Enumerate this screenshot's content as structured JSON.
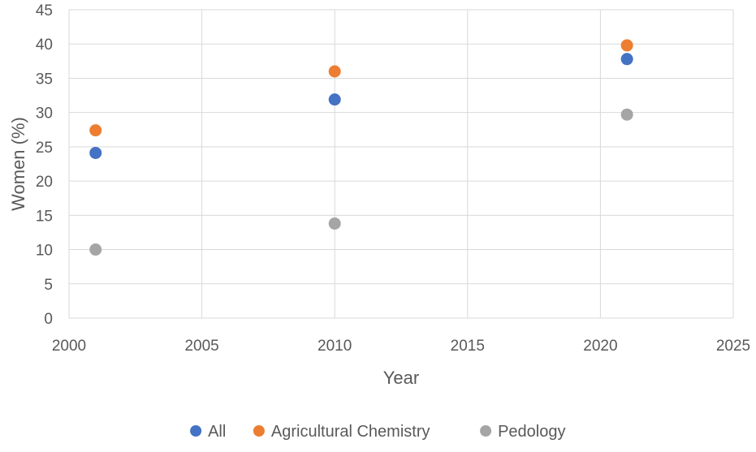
{
  "chart_data": {
    "type": "scatter",
    "title": "",
    "xlabel": "Year",
    "ylabel": "Women (%)",
    "xlim": [
      2000,
      2025
    ],
    "ylim": [
      0,
      45
    ],
    "xticks": [
      2000,
      2005,
      2010,
      2015,
      2020,
      2025
    ],
    "yticks": [
      0,
      5,
      10,
      15,
      20,
      25,
      30,
      35,
      40,
      45
    ],
    "grid": true,
    "legend_position": "bottom",
    "series": [
      {
        "name": "All",
        "color": "#4472C4",
        "points": [
          {
            "x": 2001,
            "y": 24.1
          },
          {
            "x": 2010,
            "y": 31.9
          },
          {
            "x": 2021,
            "y": 37.8
          }
        ]
      },
      {
        "name": "Agricultural Chemistry",
        "color": "#ED7D31",
        "points": [
          {
            "x": 2001,
            "y": 27.4
          },
          {
            "x": 2010,
            "y": 36.0
          },
          {
            "x": 2021,
            "y": 39.8
          }
        ]
      },
      {
        "name": "Pedology",
        "color": "#A5A5A5",
        "points": [
          {
            "x": 2001,
            "y": 10.0
          },
          {
            "x": 2010,
            "y": 13.8
          },
          {
            "x": 2021,
            "y": 29.7
          }
        ]
      }
    ]
  }
}
